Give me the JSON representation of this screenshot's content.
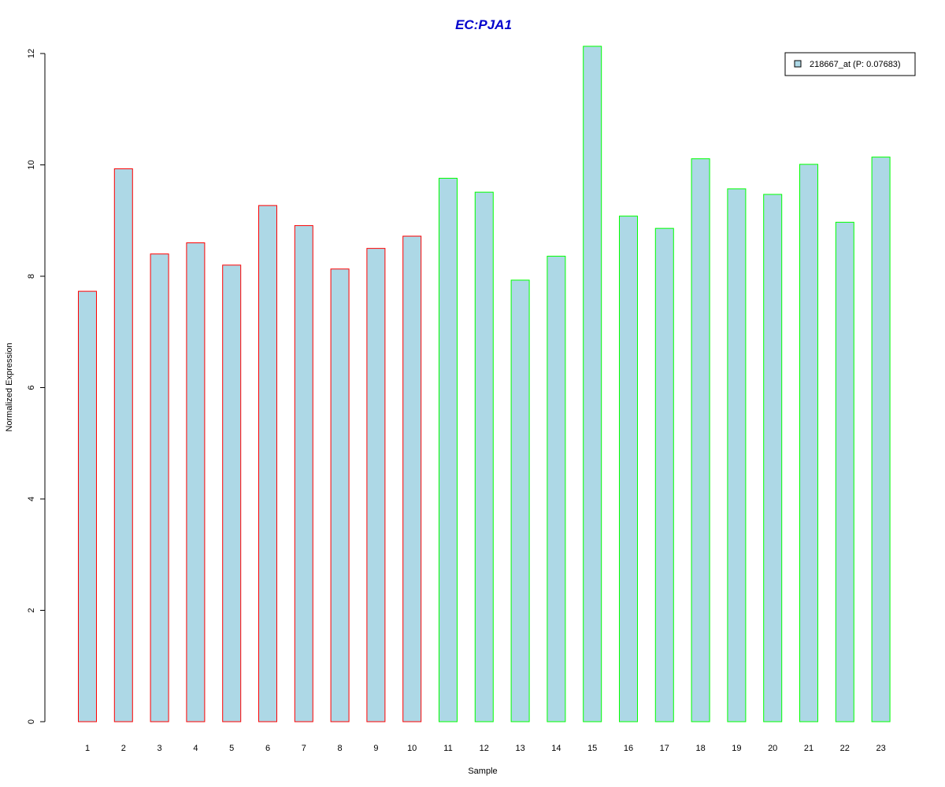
{
  "chart_data": {
    "type": "bar",
    "title": "EC:PJA1",
    "xlabel": "Sample",
    "ylabel": "Normalized Expression",
    "categories": [
      "1",
      "2",
      "3",
      "4",
      "5",
      "6",
      "7",
      "8",
      "9",
      "10",
      "11",
      "12",
      "13",
      "14",
      "15",
      "16",
      "17",
      "18",
      "19",
      "20",
      "21",
      "22",
      "23"
    ],
    "series": [
      {
        "name": "218667_at (P: 0.07683)",
        "values": [
          7.73,
          9.93,
          8.4,
          8.6,
          8.2,
          9.27,
          8.91,
          8.13,
          8.5,
          8.72,
          9.76,
          9.51,
          7.93,
          8.36,
          12.13,
          9.08,
          8.86,
          10.11,
          9.57,
          9.47,
          10.01,
          8.97,
          10.14
        ]
      }
    ],
    "bar_border_colors": [
      "#ff0000",
      "#ff0000",
      "#ff0000",
      "#ff0000",
      "#ff0000",
      "#ff0000",
      "#ff0000",
      "#ff0000",
      "#ff0000",
      "#ff0000",
      "#00ff00",
      "#00ff00",
      "#00ff00",
      "#00ff00",
      "#00ff00",
      "#00ff00",
      "#00ff00",
      "#00ff00",
      "#00ff00",
      "#00ff00",
      "#00ff00",
      "#00ff00",
      "#00ff00"
    ],
    "bar_fill_color": "#add8e6",
    "title_color": "#0000cc",
    "ylim": [
      0,
      12
    ],
    "yticks": [
      0,
      2,
      4,
      6,
      8,
      10,
      12
    ],
    "grid": false,
    "legend_position": "top-right"
  }
}
